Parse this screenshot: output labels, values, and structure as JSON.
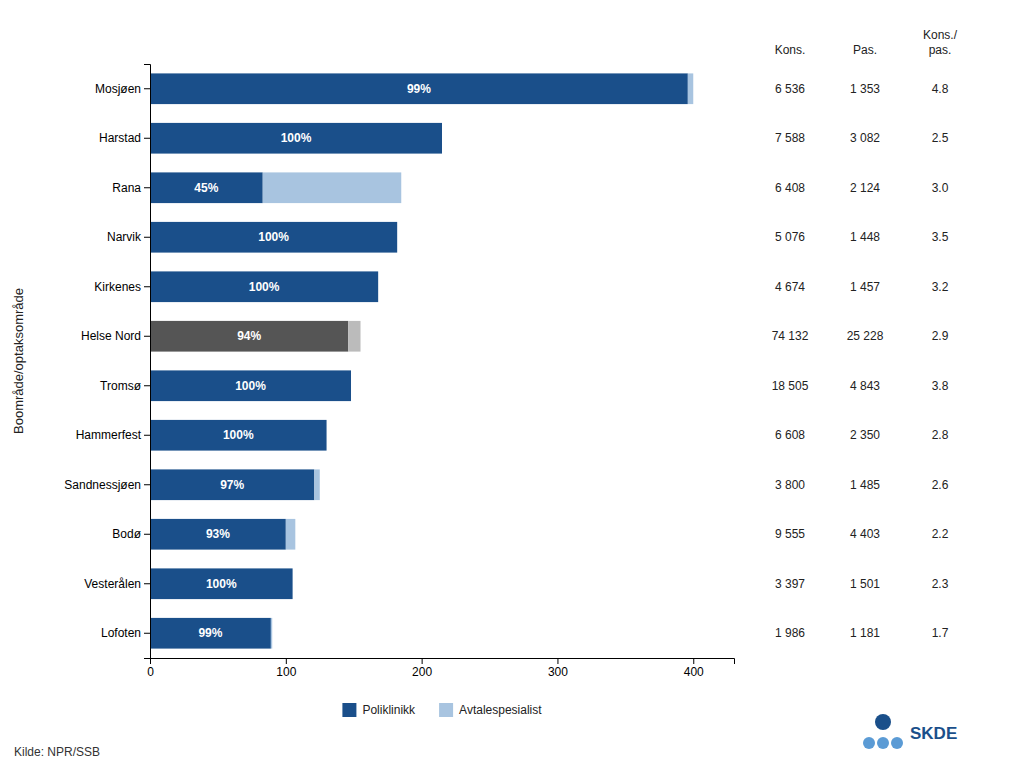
{
  "chart_data": {
    "type": "bar",
    "orientation": "horizontal",
    "stacked": true,
    "ylabel": "Boområde/optaksområde",
    "categories": [
      "Mosjøen",
      "Harstad",
      "Rana",
      "Narvik",
      "Kirkenes",
      "Helse Nord",
      "Tromsø",
      "Hammerfest",
      "Sandnessjøen",
      "Bodø",
      "Vesterålen",
      "Lofoten"
    ],
    "series": [
      {
        "name": "Poliklinikk",
        "color": "#1a4f8a",
        "colors": [
          "#1a4f8a",
          "#1a4f8a",
          "#1a4f8a",
          "#1a4f8a",
          "#1a4f8a",
          "#555555",
          "#1a4f8a",
          "#1a4f8a",
          "#1a4f8a",
          "#1a4f8a",
          "#1a4f8a",
          "#1a4f8a"
        ],
        "values": [
          396,
          215,
          83,
          182,
          168,
          146,
          148,
          130,
          121,
          100,
          105,
          89
        ]
      },
      {
        "name": "Avtalespesialist",
        "color": "#a8c4e0",
        "colors": [
          "#a8c4e0",
          "#a8c4e0",
          "#a8c4e0",
          "#a8c4e0",
          "#a8c4e0",
          "#bbbbbb",
          "#a8c4e0",
          "#a8c4e0",
          "#a8c4e0",
          "#a8c4e0",
          "#a8c4e0",
          "#a8c4e0"
        ],
        "values": [
          4,
          0,
          102,
          0,
          0,
          9,
          0,
          0,
          4,
          7,
          0,
          1
        ]
      }
    ],
    "share_labels": [
      "99%",
      "100%",
      "45%",
      "100%",
      "100%",
      "94%",
      "100%",
      "100%",
      "97%",
      "93%",
      "100%",
      "99%"
    ],
    "xlim": [
      0,
      430
    ],
    "xticks": [
      0,
      100,
      200,
      300,
      400
    ],
    "grid": false,
    "legend": "bottom",
    "table": {
      "columns": [
        {
          "header": [
            "Kons."
          ],
          "values": [
            6536,
            7588,
            6408,
            5076,
            4674,
            74132,
            18505,
            6608,
            3800,
            9555,
            3397,
            1986
          ],
          "value_labels": [
            "6 536",
            "7 588",
            "6 408",
            "5 076",
            "4 674",
            "74 132",
            "18 505",
            "6 608",
            "3 800",
            "9 555",
            "3 397",
            "1 986"
          ]
        },
        {
          "header": [
            "Pas."
          ],
          "values": [
            1353,
            3082,
            2124,
            1448,
            1457,
            25228,
            4843,
            2350,
            1485,
            4403,
            1501,
            1181
          ],
          "value_labels": [
            "1 353",
            "3 082",
            "2 124",
            "1 448",
            "1 457",
            "25 228",
            "4 843",
            "2 350",
            "1 485",
            "4 403",
            "1 501",
            "1 181"
          ]
        },
        {
          "header": [
            "Kons./",
            "pas."
          ],
          "values": [
            4.8,
            2.5,
            3.0,
            3.5,
            3.2,
            2.9,
            3.8,
            2.8,
            2.6,
            2.2,
            2.3,
            1.7
          ],
          "value_labels": [
            "4.8",
            "2.5",
            "3.0",
            "3.5",
            "3.2",
            "2.9",
            "3.8",
            "2.8",
            "2.6",
            "2.2",
            "2.3",
            "1.7"
          ]
        }
      ]
    },
    "annotations": [
      "Kilde: NPR/SSB",
      "SKDE"
    ]
  }
}
